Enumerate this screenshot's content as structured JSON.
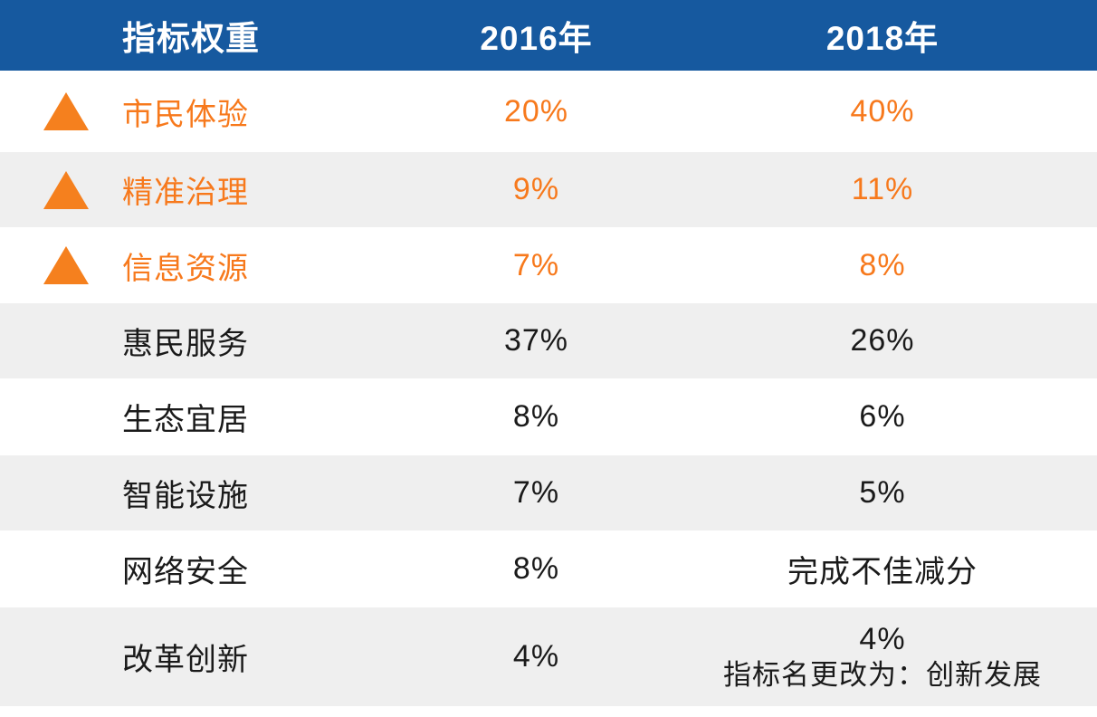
{
  "chart_data": {
    "type": "table",
    "title": "指标权重",
    "columns": [
      "指标权重",
      "2016年",
      "2018年"
    ],
    "rows": [
      {
        "indicator": "市民体验",
        "y2016": "20%",
        "y2018": "40%",
        "emphasis": "up-triangle-orange"
      },
      {
        "indicator": "精准治理",
        "y2016": "9%",
        "y2018": "11%",
        "emphasis": "up-triangle-orange"
      },
      {
        "indicator": "信息资源",
        "y2016": "7%",
        "y2018": "8%",
        "emphasis": "up-triangle-orange"
      },
      {
        "indicator": "惠民服务",
        "y2016": "37%",
        "y2018": "26%",
        "emphasis": "none"
      },
      {
        "indicator": "生态宜居",
        "y2016": "8%",
        "y2018": "6%",
        "emphasis": "none"
      },
      {
        "indicator": "智能设施",
        "y2016": "7%",
        "y2018": "5%",
        "emphasis": "none"
      },
      {
        "indicator": "网络安全",
        "y2016": "8%",
        "y2018": "完成不佳减分",
        "emphasis": "none"
      },
      {
        "indicator": "改革创新",
        "y2016": "4%",
        "y2018": "4%",
        "y2018_note": "指标名更改为：创新发展",
        "emphasis": "none"
      }
    ],
    "layout_hints": {
      "header_position": "top",
      "striped_rows": true,
      "highlighted_rows_indexes": [
        0,
        1,
        2
      ]
    }
  },
  "colors": {
    "header_bg": "#16599F",
    "header_text": "#FFFFFF",
    "highlight_orange": "#F7791C",
    "triangle_orange": "#F5801E",
    "alt_row_bg": "#EFEFEF",
    "row_bg": "#FFFFFF",
    "body_text": "#1A1A1A"
  }
}
